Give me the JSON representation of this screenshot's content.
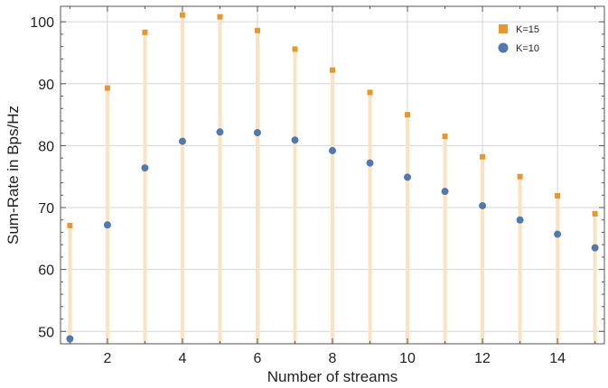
{
  "chart_data": {
    "type": "scatter",
    "title": "",
    "xlabel": "Number of streams",
    "ylabel": "Sum-Rate in Bps/Hz",
    "xlim": [
      0.75,
      15.25
    ],
    "ylim": [
      48,
      102.5
    ],
    "x_ticks": [
      2,
      4,
      6,
      8,
      10,
      12,
      14
    ],
    "y_ticks": [
      50,
      60,
      70,
      80,
      90,
      100
    ],
    "grid": true,
    "legend_position": "top-right",
    "x": [
      1,
      2,
      3,
      4,
      5,
      6,
      7,
      8,
      9,
      10,
      11,
      12,
      13,
      14,
      15
    ],
    "series": [
      {
        "name": "K=15",
        "marker": "square",
        "color": "#e8962e",
        "values": [
          67.1,
          89.3,
          98.3,
          101.1,
          100.8,
          98.6,
          95.6,
          92.2,
          88.6,
          85.0,
          81.5,
          78.2,
          75.0,
          71.9,
          69.0
        ]
      },
      {
        "name": "K=10",
        "marker": "circle",
        "color": "#5278b0",
        "values": [
          48.8,
          67.2,
          76.4,
          80.7,
          82.2,
          82.1,
          80.9,
          79.2,
          77.2,
          74.9,
          72.6,
          70.3,
          68.0,
          65.7,
          63.5
        ]
      }
    ],
    "stem_color": "#fbe3c2",
    "grid_color": "#d6d6d6"
  }
}
